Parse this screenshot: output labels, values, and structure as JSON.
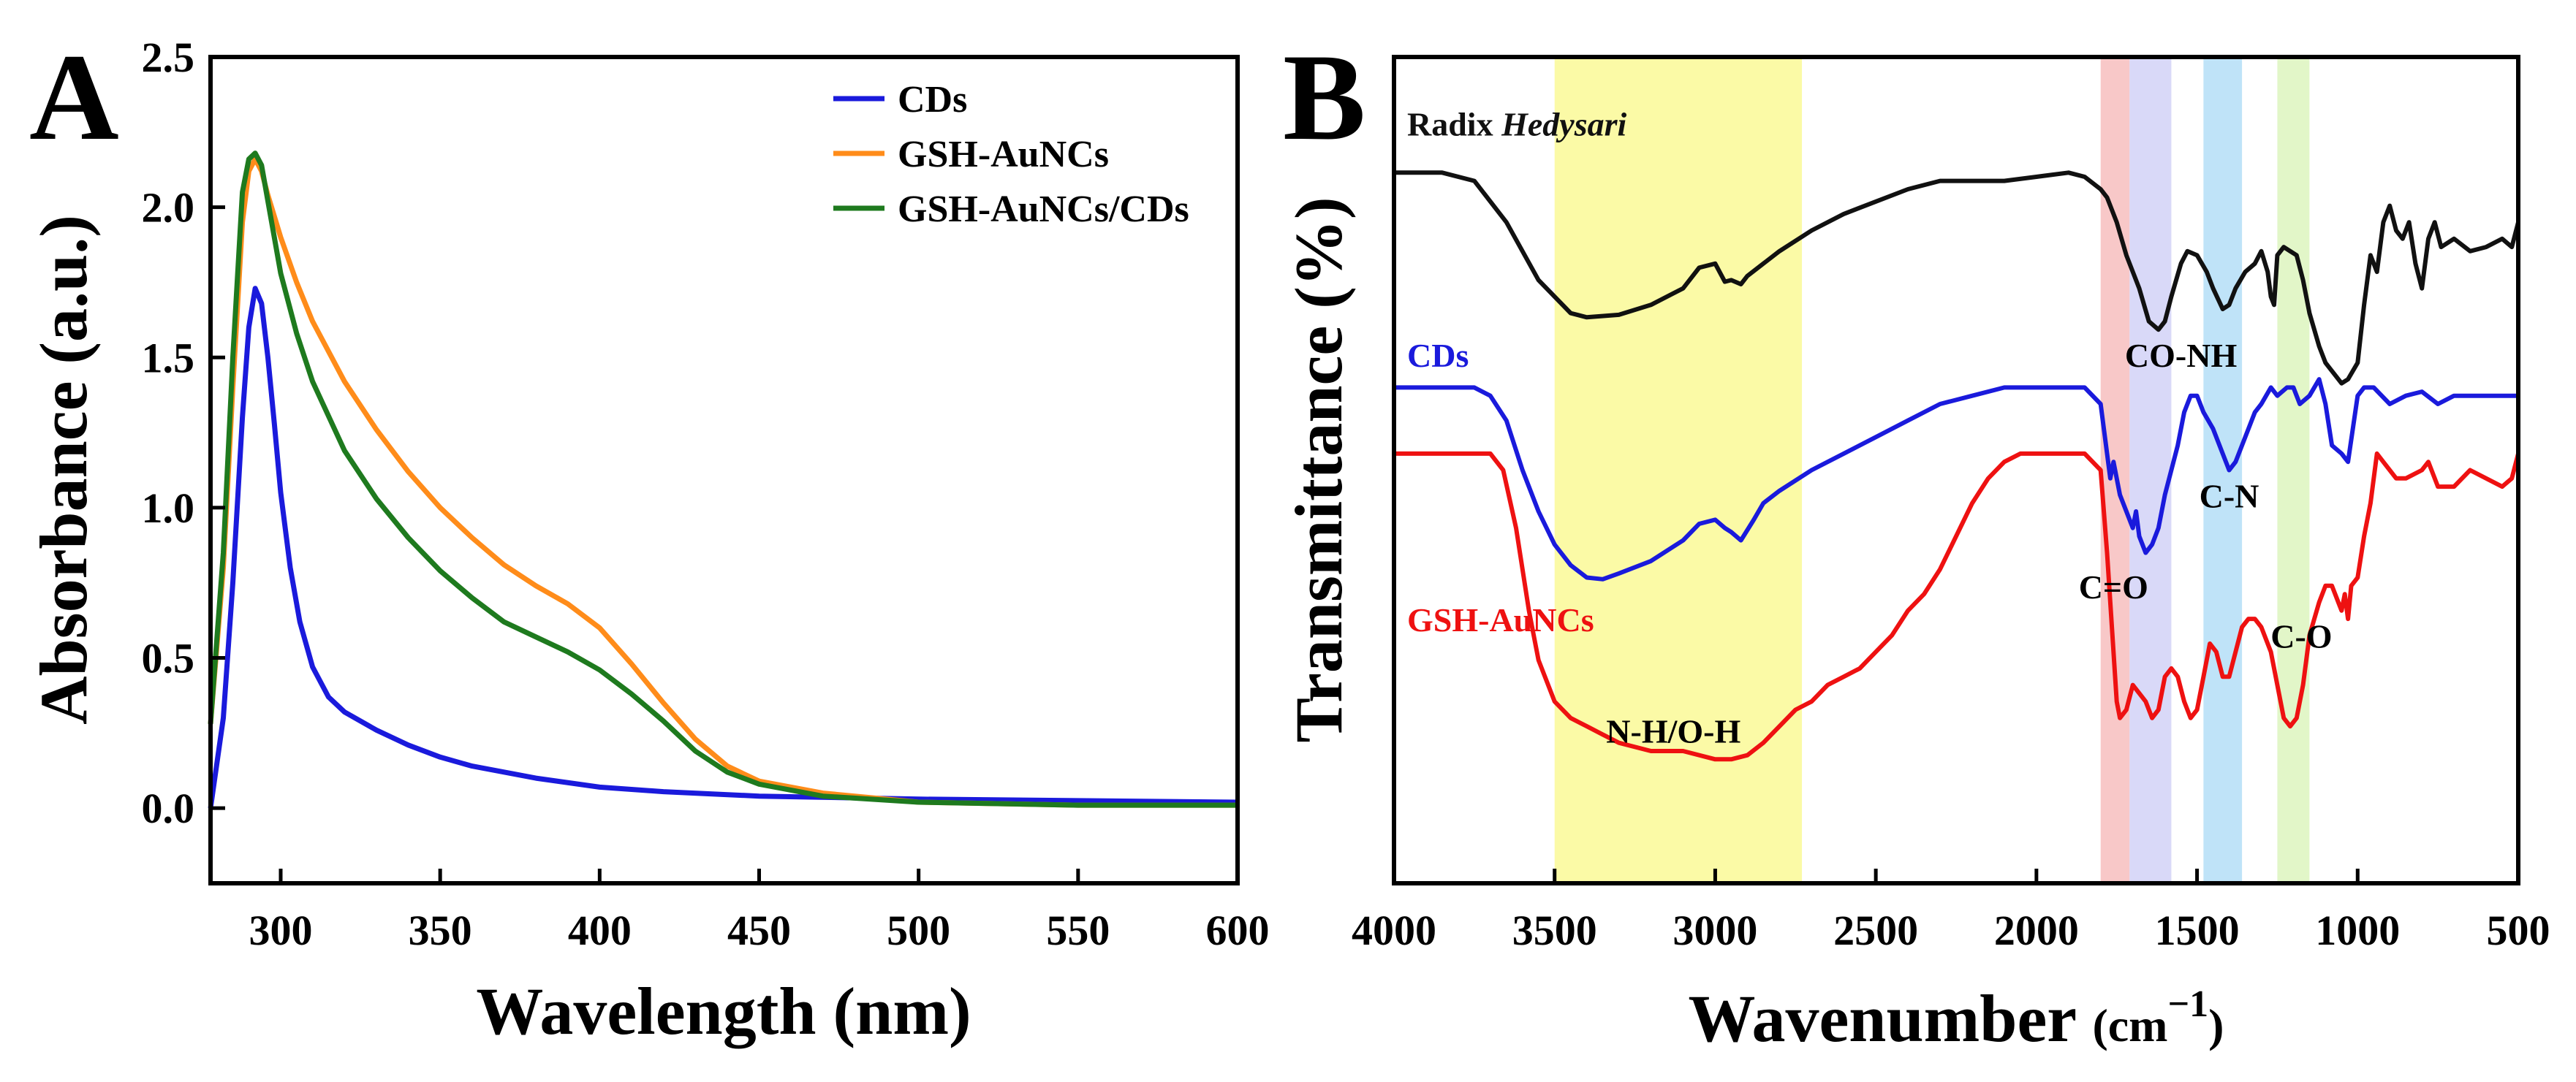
{
  "chart_data": [
    {
      "panel_label": "A",
      "type": "line",
      "xlabel": "Wavelength (nm)",
      "ylabel": "Absorbance (a.u.)",
      "xlim": [
        278,
        600
      ],
      "ylim": [
        -0.25,
        2.5
      ],
      "xticks": [
        {
          "value": 300,
          "label": "300"
        },
        {
          "value": 350,
          "label": "350"
        },
        {
          "value": 400,
          "label": "400"
        },
        {
          "value": 450,
          "label": "450"
        },
        {
          "value": 500,
          "label": "500"
        },
        {
          "value": 550,
          "label": "550"
        },
        {
          "value": 600,
          "label": "600"
        }
      ],
      "yticks": [
        {
          "value": 0.0,
          "label": "0.0"
        },
        {
          "value": 0.5,
          "label": "0.5"
        },
        {
          "value": 1.0,
          "label": "1.0"
        },
        {
          "value": 1.5,
          "label": "1.5"
        },
        {
          "value": 2.0,
          "label": "2.0"
        },
        {
          "value": 2.5,
          "label": "2.5"
        }
      ],
      "legend_position": "top-right",
      "series": [
        {
          "name": "CDs",
          "color": "#1a1adc",
          "x": [
            278,
            282,
            285,
            288,
            290,
            292,
            294,
            296,
            298,
            300,
            303,
            306,
            310,
            315,
            320,
            330,
            340,
            350,
            360,
            380,
            400,
            420,
            450,
            500,
            550,
            600
          ],
          "y": [
            0.0,
            0.3,
            0.75,
            1.3,
            1.6,
            1.73,
            1.68,
            1.5,
            1.28,
            1.05,
            0.8,
            0.62,
            0.47,
            0.37,
            0.32,
            0.26,
            0.21,
            0.17,
            0.14,
            0.1,
            0.07,
            0.055,
            0.04,
            0.03,
            0.025,
            0.02
          ]
        },
        {
          "name": "GSH-AuNCs",
          "color": "#ff8c1a",
          "x": [
            278,
            282,
            285,
            288,
            290,
            292,
            294,
            296,
            300,
            305,
            310,
            320,
            330,
            340,
            350,
            360,
            370,
            380,
            390,
            400,
            410,
            420,
            430,
            440,
            450,
            470,
            500,
            550,
            600
          ],
          "y": [
            0.28,
            0.8,
            1.4,
            1.95,
            2.12,
            2.16,
            2.12,
            2.04,
            1.9,
            1.75,
            1.62,
            1.42,
            1.26,
            1.12,
            1.0,
            0.9,
            0.81,
            0.74,
            0.68,
            0.6,
            0.48,
            0.35,
            0.23,
            0.14,
            0.09,
            0.05,
            0.02,
            0.01,
            0.01
          ]
        },
        {
          "name": "GSH-AuNCs/CDs",
          "color": "#1e7a1e",
          "x": [
            278,
            282,
            285,
            288,
            290,
            292,
            294,
            296,
            300,
            305,
            310,
            320,
            330,
            340,
            350,
            360,
            370,
            380,
            390,
            400,
            410,
            420,
            430,
            440,
            450,
            470,
            500,
            550,
            600
          ],
          "y": [
            0.28,
            0.85,
            1.5,
            2.05,
            2.16,
            2.18,
            2.14,
            2.02,
            1.78,
            1.58,
            1.42,
            1.19,
            1.03,
            0.9,
            0.79,
            0.7,
            0.62,
            0.57,
            0.52,
            0.46,
            0.38,
            0.29,
            0.19,
            0.12,
            0.08,
            0.04,
            0.02,
            0.01,
            0.01
          ]
        }
      ]
    },
    {
      "panel_label": "B",
      "type": "line",
      "xlabel_main": "Wavenumber",
      "xlabel_unit": "(cm",
      "xlabel_sup": "−1",
      "xlabel_close": ")",
      "ylabel": "Transmittance (%)",
      "xlim": [
        4000,
        500
      ],
      "ylim": [
        0,
        100
      ],
      "xticks": [
        {
          "value": 4000,
          "label": "4000"
        },
        {
          "value": 3500,
          "label": "3500"
        },
        {
          "value": 3000,
          "label": "3000"
        },
        {
          "value": 2500,
          "label": "2500"
        },
        {
          "value": 2000,
          "label": "2000"
        },
        {
          "value": 1500,
          "label": "1500"
        },
        {
          "value": 1000,
          "label": "1000"
        },
        {
          "value": 500,
          "label": "500"
        }
      ],
      "bands": [
        {
          "from": 3500,
          "to": 2730,
          "color": "#fbfaa6"
        },
        {
          "from": 1800,
          "to": 1710,
          "color": "#f8c8c8"
        },
        {
          "from": 1710,
          "to": 1580,
          "color": "#d9d9f8"
        },
        {
          "from": 1480,
          "to": 1360,
          "color": "#bfe3f8"
        },
        {
          "from": 1250,
          "to": 1150,
          "color": "#e2f6c8"
        }
      ],
      "annotations": [
        {
          "text": "CO-NH",
          "wn": 1550,
          "t": 62.5
        },
        {
          "text": "C-N",
          "wn": 1400,
          "t": 45.5
        },
        {
          "text": "C=O",
          "wn": 1760,
          "t": 34.5
        },
        {
          "text": "C-O",
          "wn": 1175,
          "t": 28.5
        },
        {
          "text": "N-H/O-H",
          "wn": 3130,
          "t": 17.0
        }
      ],
      "series": [
        {
          "name_prefix": "Radix ",
          "name_italic": "Hedysari",
          "color": "#111111",
          "label_t": 90.5,
          "x": [
            4000,
            3850,
            3750,
            3650,
            3550,
            3450,
            3400,
            3300,
            3200,
            3100,
            3050,
            3000,
            2970,
            2950,
            2920,
            2900,
            2850,
            2800,
            2700,
            2600,
            2500,
            2400,
            2300,
            2200,
            2100,
            2000,
            1900,
            1850,
            1800,
            1780,
            1750,
            1720,
            1700,
            1680,
            1650,
            1620,
            1600,
            1580,
            1550,
            1530,
            1500,
            1470,
            1450,
            1420,
            1400,
            1380,
            1350,
            1320,
            1300,
            1280,
            1270,
            1260,
            1250,
            1230,
            1210,
            1190,
            1170,
            1150,
            1120,
            1100,
            1080,
            1050,
            1030,
            1000,
            980,
            960,
            940,
            920,
            900,
            880,
            860,
            840,
            820,
            800,
            780,
            760,
            740,
            700,
            650,
            600,
            550,
            520,
            500
          ],
          "y": [
            86,
            86,
            85,
            80,
            73,
            69,
            68.5,
            68.8,
            70,
            72,
            74.5,
            75,
            72.8,
            73,
            72.5,
            73.5,
            75,
            76.5,
            79,
            81,
            82.5,
            84,
            85,
            85,
            85,
            85.5,
            86,
            85.5,
            84,
            83,
            80,
            76,
            74,
            72,
            68,
            67,
            68,
            71,
            75,
            76.5,
            76,
            74,
            72,
            69.5,
            70,
            72,
            74,
            75,
            76.5,
            74,
            71,
            70,
            76,
            77,
            76.5,
            76,
            73,
            69,
            65,
            63,
            62,
            60.5,
            61,
            63,
            70,
            76,
            74,
            80,
            82,
            79,
            78,
            80,
            75,
            72,
            78,
            80,
            77,
            78,
            76.5,
            77,
            78,
            77,
            80
          ]
        },
        {
          "name_prefix": "CDs",
          "name_italic": "",
          "color": "#1a1adc",
          "label_t": 62.5,
          "x": [
            4000,
            3750,
            3700,
            3650,
            3600,
            3550,
            3500,
            3450,
            3400,
            3350,
            3300,
            3200,
            3100,
            3050,
            3000,
            2970,
            2950,
            2920,
            2880,
            2850,
            2800,
            2700,
            2600,
            2500,
            2400,
            2300,
            2200,
            2100,
            2000,
            1900,
            1850,
            1800,
            1780,
            1770,
            1760,
            1740,
            1720,
            1700,
            1690,
            1680,
            1660,
            1640,
            1620,
            1600,
            1580,
            1560,
            1540,
            1520,
            1500,
            1480,
            1450,
            1420,
            1400,
            1380,
            1350,
            1320,
            1300,
            1270,
            1250,
            1220,
            1200,
            1180,
            1150,
            1120,
            1100,
            1080,
            1050,
            1030,
            1000,
            980,
            950,
            900,
            850,
            800,
            750,
            700,
            650,
            600,
            550,
            500
          ],
          "y": [
            60,
            60,
            59,
            56,
            50,
            45,
            41,
            38.5,
            37,
            36.8,
            37.5,
            39,
            41.5,
            43.5,
            44,
            43,
            42.5,
            41.5,
            44,
            46,
            47.5,
            50,
            52,
            54,
            56,
            58,
            59,
            60,
            60,
            60,
            60,
            58,
            52,
            49,
            51,
            47,
            45,
            43,
            45,
            42,
            40,
            41,
            43,
            47,
            50,
            53,
            57,
            59,
            59,
            57,
            55,
            52,
            50,
            51,
            54,
            57,
            58,
            60,
            59,
            60,
            60,
            58,
            59,
            61,
            58,
            53,
            52,
            51,
            59,
            60,
            60,
            58,
            59,
            59.5,
            58,
            59,
            59,
            59,
            59,
            59
          ]
        },
        {
          "name_prefix": "GSH-AuNCs",
          "name_italic": "",
          "color": "#ee1111",
          "label_t": 30.5,
          "x": [
            4000,
            3700,
            3660,
            3620,
            3580,
            3550,
            3500,
            3450,
            3400,
            3350,
            3300,
            3200,
            3100,
            3000,
            2950,
            2900,
            2850,
            2800,
            2750,
            2700,
            2650,
            2600,
            2550,
            2500,
            2450,
            2400,
            2350,
            2300,
            2250,
            2200,
            2150,
            2100,
            2050,
            2000,
            1950,
            1900,
            1850,
            1800,
            1780,
            1760,
            1750,
            1740,
            1720,
            1700,
            1680,
            1660,
            1640,
            1620,
            1600,
            1580,
            1560,
            1540,
            1520,
            1500,
            1480,
            1460,
            1440,
            1420,
            1400,
            1380,
            1360,
            1340,
            1320,
            1300,
            1270,
            1250,
            1230,
            1210,
            1190,
            1170,
            1150,
            1120,
            1100,
            1080,
            1060,
            1050,
            1040,
            1030,
            1020,
            1000,
            980,
            960,
            940,
            920,
            900,
            880,
            850,
            800,
            780,
            750,
            700,
            650,
            600,
            550,
            520,
            500
          ],
          "y": [
            52,
            52,
            50,
            43,
            33,
            27,
            22,
            20,
            19,
            18,
            17,
            16,
            16,
            15,
            15,
            15.5,
            17,
            19,
            21,
            22,
            24,
            25,
            26,
            28,
            30,
            33,
            35,
            38,
            42,
            46,
            49,
            51,
            52,
            52,
            52,
            52,
            52,
            50,
            40,
            28,
            22,
            20,
            21,
            24,
            23,
            22,
            20,
            21,
            25,
            26,
            25,
            22,
            20,
            21,
            25,
            29,
            28,
            25,
            25,
            28,
            31,
            32,
            32,
            31,
            28,
            24,
            20,
            19,
            20,
            24,
            30,
            34,
            36,
            36,
            34,
            33,
            35,
            32,
            36,
            37,
            42,
            46,
            52,
            51,
            50,
            49,
            49,
            50,
            51,
            48,
            48,
            50,
            49,
            48,
            49,
            52
          ]
        }
      ]
    }
  ]
}
